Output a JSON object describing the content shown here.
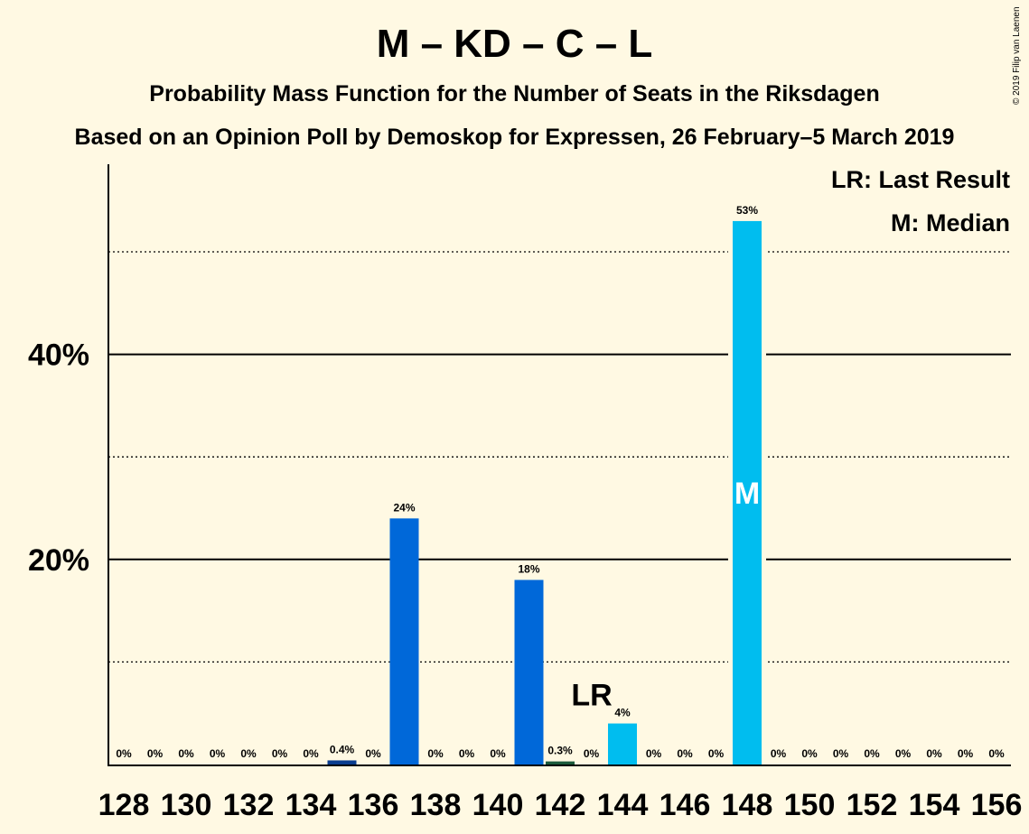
{
  "title": "M – KD – C – L",
  "subtitle": "Probability Mass Function for the Number of Seats in the Riksdagen",
  "subtitle2": "Based on an Opinion Poll by Demoskop for Expressen, 26 February–5 March 2019",
  "copyright": "© 2019 Filip van Laenen",
  "legend": {
    "last_result": "LR: Last Result",
    "median": "M: Median"
  },
  "colors": {
    "background": "#FFF9E3",
    "bar_dark": "#0068D9",
    "bar_light": "#00BDEF",
    "bar_darkest": "#0A3D8F",
    "bar_green": "#1A5A3A"
  },
  "chart_data": {
    "type": "bar",
    "x": [
      128,
      129,
      130,
      131,
      132,
      133,
      134,
      135,
      136,
      137,
      138,
      139,
      140,
      141,
      142,
      143,
      144,
      145,
      146,
      147,
      148,
      149,
      150,
      151,
      152,
      153,
      154,
      155,
      156
    ],
    "values": [
      0,
      0,
      0,
      0,
      0,
      0,
      0,
      0.4,
      0,
      24,
      0,
      0,
      0,
      18,
      0.3,
      0,
      4,
      0,
      0,
      0,
      53,
      0,
      0,
      0,
      0,
      0,
      0,
      0,
      0
    ],
    "labels": [
      "0%",
      "0%",
      "0%",
      "0%",
      "0%",
      "0%",
      "0%",
      "0.4%",
      "0%",
      "24%",
      "0%",
      "0%",
      "0%",
      "18%",
      "0.3%",
      "0%",
      "4%",
      "0%",
      "0%",
      "0%",
      "53%",
      "0%",
      "0%",
      "0%",
      "0%",
      "0%",
      "0%",
      "0%",
      "0%"
    ],
    "bar_color": [
      "dark",
      "dark",
      "dark",
      "dark",
      "dark",
      "dark",
      "dark",
      "darkest",
      "dark",
      "dark",
      "dark",
      "dark",
      "dark",
      "dark",
      "green",
      "light",
      "light",
      "light",
      "light",
      "light",
      "light",
      "light",
      "light",
      "light",
      "light",
      "light",
      "light",
      "light",
      "light"
    ],
    "x_ticks": [
      "128",
      "130",
      "132",
      "134",
      "136",
      "138",
      "140",
      "142",
      "144",
      "146",
      "148",
      "150",
      "152",
      "154",
      "156"
    ],
    "y_ticks": [
      {
        "value": 20,
        "label": "20%"
      },
      {
        "value": 40,
        "label": "40%"
      }
    ],
    "minor_gridlines": [
      10,
      30,
      50
    ],
    "ylim": [
      0,
      58
    ],
    "last_result": {
      "x": 144,
      "label": "LR"
    },
    "median": {
      "x": 148,
      "label": "M"
    }
  }
}
